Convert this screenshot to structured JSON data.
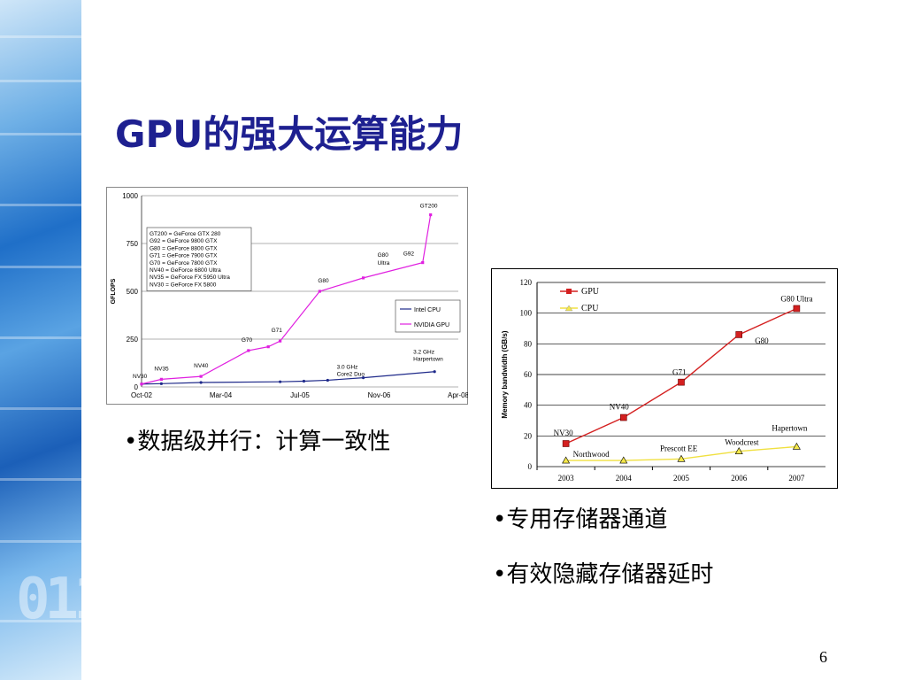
{
  "slide": {
    "title": "GPU的强大运算能力",
    "page_number": "6",
    "bullets": [
      "•数据级并行：计算一致性",
      "•专用存储器通道",
      "•有效隐藏存储器延时"
    ]
  },
  "chart_data": [
    {
      "type": "line",
      "title": "",
      "xlabel": "",
      "ylabel": "GFLOPS",
      "ylim": [
        0,
        1000
      ],
      "y_ticks": [
        "0",
        "250",
        "500",
        "750",
        "1000"
      ],
      "x_ticks": [
        "Oct-02",
        "Mar-04",
        "Jul-05",
        "Nov-06",
        "Apr-08"
      ],
      "grid": true,
      "legend_position": "right",
      "series": [
        {
          "name": "Intel CPU",
          "color": "#1f2a8a",
          "points": [
            [
              0,
              15
            ],
            [
              0.25,
              17
            ],
            [
              0.75,
              23
            ],
            [
              1.75,
              27
            ],
            [
              2.05,
              30
            ],
            [
              2.35,
              35
            ],
            [
              2.8,
              48
            ],
            [
              3.7,
              80
            ]
          ]
        },
        {
          "name": "NVIDIA GPU",
          "color": "#e020e0",
          "points": [
            [
              0,
              15
            ],
            [
              0.25,
              40
            ],
            [
              0.75,
              55
            ],
            [
              1.35,
              190
            ],
            [
              1.6,
              210
            ],
            [
              1.75,
              240
            ],
            [
              2.25,
              500
            ],
            [
              2.8,
              570
            ],
            [
              3.55,
              650
            ],
            [
              3.65,
              900
            ]
          ]
        }
      ],
      "annotations": [
        {
          "text": "NV30",
          "x": 0,
          "y": 15
        },
        {
          "text": "NV35",
          "x": 0.25,
          "y": 40
        },
        {
          "text": "NV40",
          "x": 0.75,
          "y": 55
        },
        {
          "text": "G70",
          "x": 1.35,
          "y": 190
        },
        {
          "text": "G71",
          "x": 1.75,
          "y": 240
        },
        {
          "text": "G80",
          "x": 2.25,
          "y": 500
        },
        {
          "text": "G80",
          "x": 2.8,
          "y": 570
        },
        {
          "text": "Ultra",
          "x": 2.8,
          "y": 570
        },
        {
          "text": "G92",
          "x": 3.55,
          "y": 650
        },
        {
          "text": "GT200",
          "x": 3.65,
          "y": 900
        },
        {
          "text": "3.0 GHz",
          "x": 2.8,
          "y": 48
        },
        {
          "text": "Core2 Duo",
          "x": 2.8,
          "y": 48
        },
        {
          "text": "3.2 GHz",
          "x": 3.7,
          "y": 80
        },
        {
          "text": "Harpertown",
          "x": 3.7,
          "y": 80
        }
      ],
      "key_legend": [
        "GT200 = GeForce GTX 280",
        "G92 = GeForce 9800 GTX",
        "G80 = GeForce 8800 GTX",
        "G71 = GeForce 7900 GTX",
        "G70 = GeForce 7800 GTX",
        "NV40 = GeForce 6800 Ultra",
        "NV35 = GeForce FX 5950 Ultra",
        "NV30 = GeForce FX 5800"
      ]
    },
    {
      "type": "line",
      "title": "",
      "xlabel": "",
      "ylabel": "Memory bandwidth (GB/s)",
      "ylim": [
        0,
        120
      ],
      "y_ticks": [
        "0",
        "20",
        "40",
        "60",
        "80",
        "100",
        "120"
      ],
      "categories": [
        "2003",
        "2004",
        "2005",
        "2006",
        "2007"
      ],
      "grid": true,
      "legend_position": "top-left",
      "series": [
        {
          "name": "GPU",
          "color": "#d42020",
          "values": [
            15,
            32,
            55,
            86,
            103
          ],
          "labels": [
            "NV30",
            "NV40",
            "G71",
            "G80",
            "G80 Ultra"
          ]
        },
        {
          "name": "CPU",
          "color": "#f0e040",
          "values": [
            4,
            4,
            5,
            10,
            13
          ],
          "labels": [
            "Northwood",
            "",
            "Prescott EE",
            "Woodcrest",
            "Hapertown"
          ]
        }
      ]
    }
  ]
}
